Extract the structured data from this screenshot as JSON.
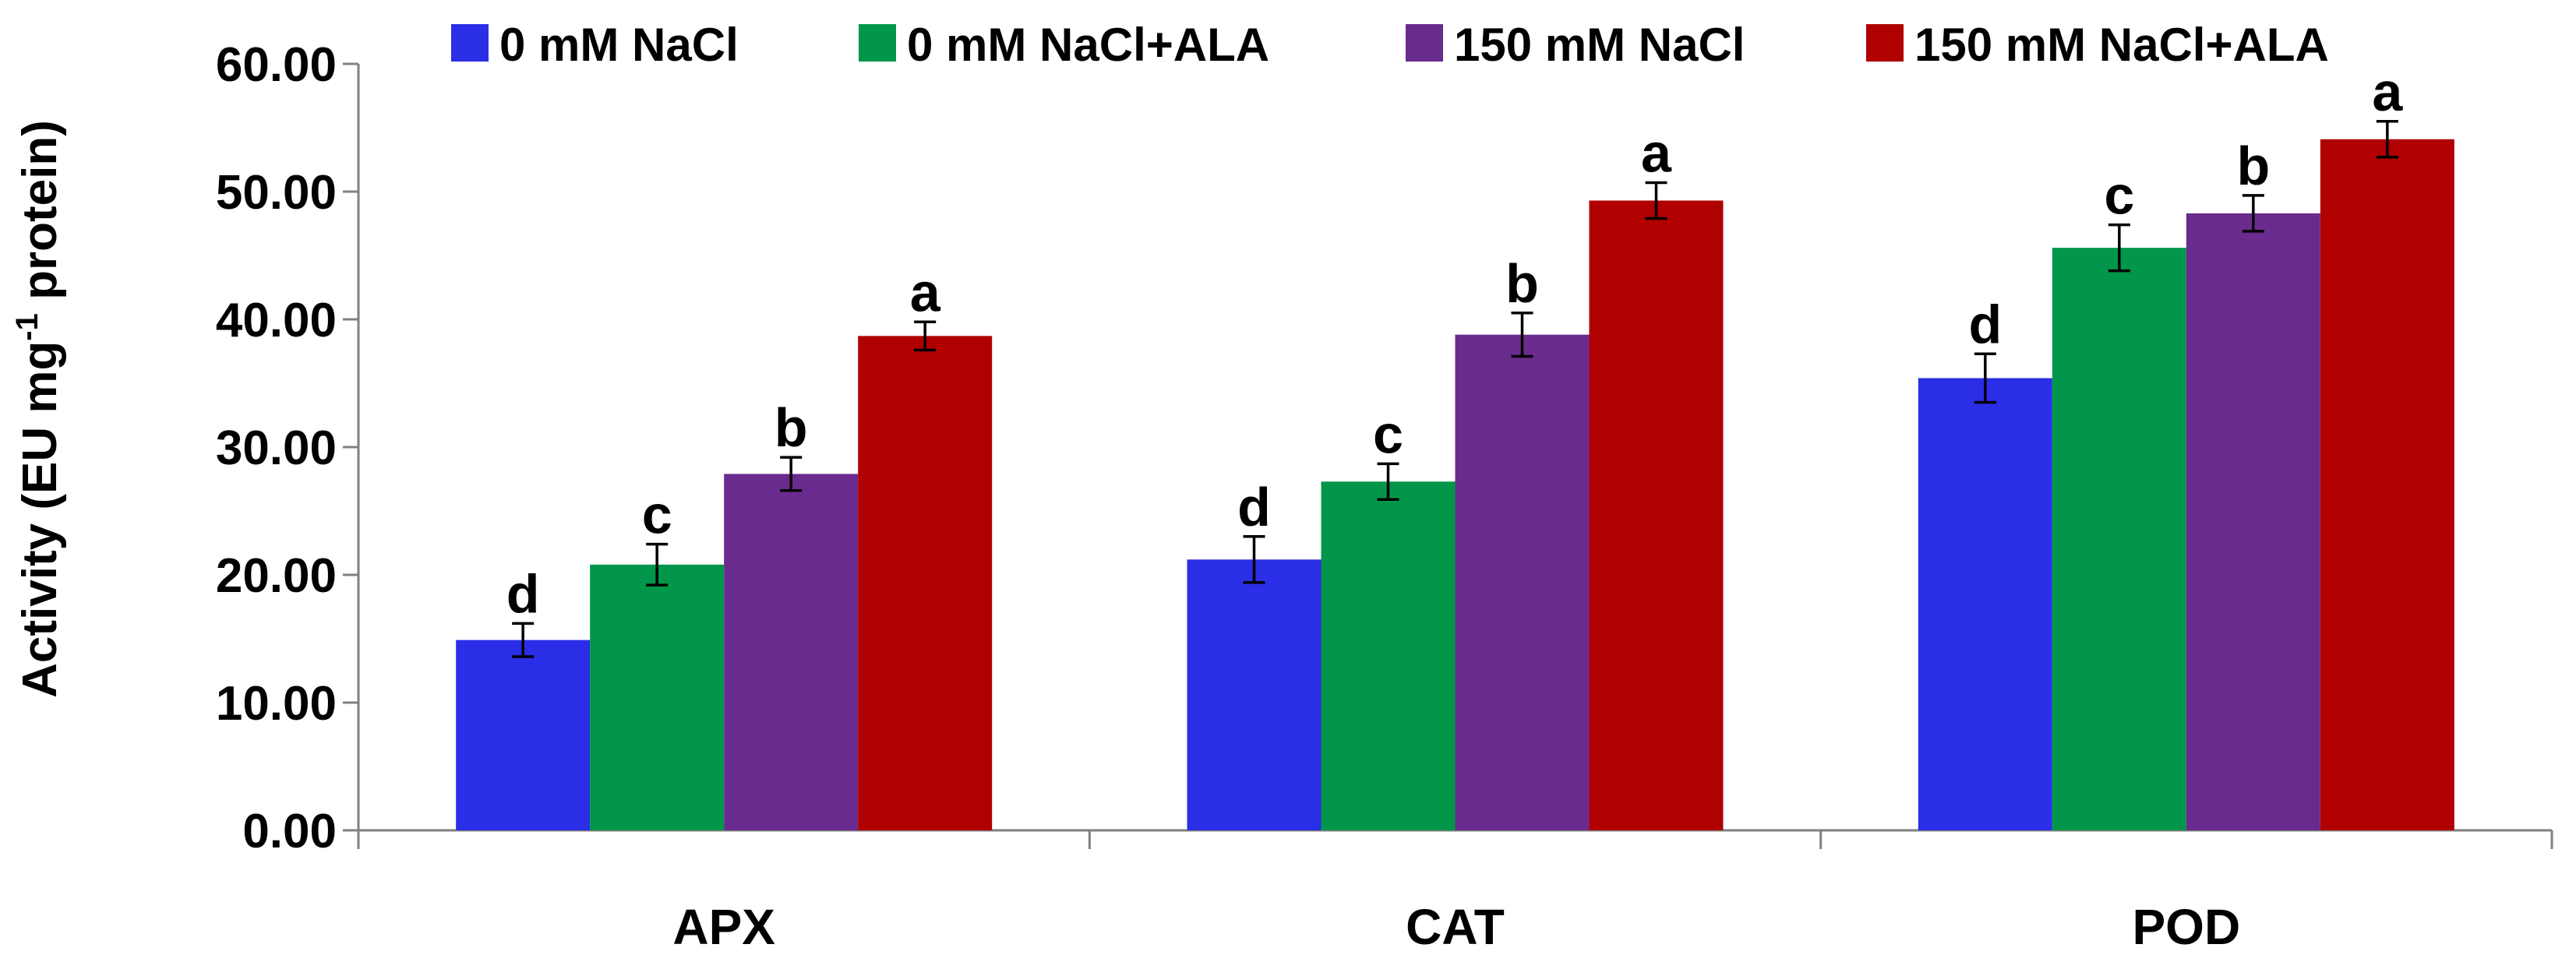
{
  "chart_data": {
    "type": "bar",
    "title": "",
    "xlabel": "",
    "ylabel": {
      "prefix": "Activity (EU mg",
      "superscript": "-1",
      "suffix": " protein)"
    },
    "ylim": [
      0,
      60
    ],
    "yticks": [
      0,
      10,
      20,
      30,
      40,
      50,
      60
    ],
    "ytick_labels": [
      "0.00",
      "10.00",
      "20.00",
      "30.00",
      "40.00",
      "50.00",
      "60.00"
    ],
    "grid": false,
    "legend_position": "top",
    "categories": [
      "APX",
      "CAT",
      "POD"
    ],
    "series": [
      {
        "name": "0 mM NaCl",
        "color": "#2a2ee6",
        "values": [
          14.9,
          21.2,
          35.4
        ],
        "errors": [
          1.3,
          1.8,
          1.9
        ],
        "letters": [
          "d",
          "d",
          "d"
        ]
      },
      {
        "name": "0 mM NaCl+ALA",
        "color": "#01964a",
        "values": [
          20.8,
          27.3,
          45.6
        ],
        "errors": [
          1.6,
          1.4,
          1.8
        ],
        "letters": [
          "c",
          "c",
          "c"
        ]
      },
      {
        "name": "150 mM NaCl",
        "color": "#6a2b8e",
        "values": [
          27.9,
          38.8,
          48.3
        ],
        "errors": [
          1.3,
          1.7,
          1.4
        ],
        "letters": [
          "b",
          "b",
          "b"
        ]
      },
      {
        "name": "150 mM NaCl+ALA",
        "color": "#b00000",
        "values": [
          38.7,
          49.3,
          54.1
        ],
        "errors": [
          1.1,
          1.4,
          1.4
        ],
        "letters": [
          "a",
          "a",
          "a"
        ]
      }
    ]
  }
}
